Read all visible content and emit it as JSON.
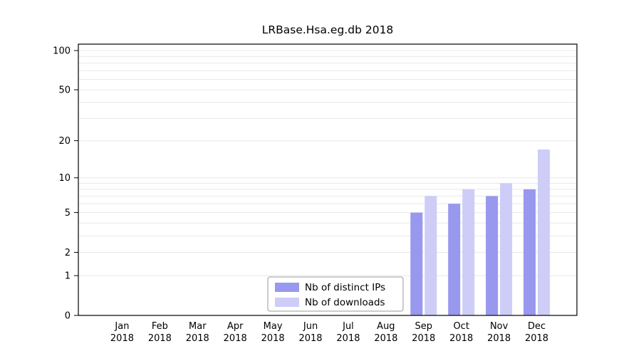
{
  "title": "LRBase.Hsa.eg.db 2018",
  "chart_data": {
    "type": "bar",
    "title": "LRBase.Hsa.eg.db 2018",
    "categories": [
      "Jan",
      "Feb",
      "Mar",
      "Apr",
      "May",
      "Jun",
      "Jul",
      "Aug",
      "Sep",
      "Oct",
      "Nov",
      "Dec"
    ],
    "year_label": "2018",
    "series": [
      {
        "name": "Nb of distinct IPs",
        "color": "#9898ee",
        "values": [
          0,
          0,
          0,
          0,
          0,
          0,
          0,
          0,
          5,
          6,
          7,
          8
        ]
      },
      {
        "name": "Nb of downloads",
        "color": "#cdcdf8",
        "values": [
          0,
          0,
          0,
          0,
          0,
          0,
          0,
          0,
          7,
          8,
          9,
          17
        ]
      }
    ],
    "y_ticks": [
      0,
      1,
      2,
      5,
      10,
      20,
      50,
      100
    ],
    "y_scale": "log1p",
    "ylim": [
      0,
      100
    ],
    "grid_values": [
      1,
      2,
      3,
      4,
      5,
      6,
      7,
      8,
      9,
      10,
      20,
      30,
      40,
      50,
      60,
      70,
      80,
      90,
      100
    ],
    "grid": true,
    "legend_position": "bottom-center-inside",
    "colors": {
      "grid": "#e8e8e8",
      "axis": "#000000",
      "background": "#ffffff",
      "legend_border": "#9a9a9a",
      "text": "#000000"
    }
  }
}
